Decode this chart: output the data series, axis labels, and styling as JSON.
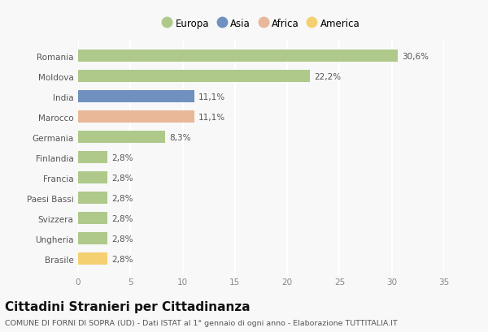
{
  "categories": [
    "Romania",
    "Moldova",
    "India",
    "Marocco",
    "Germania",
    "Finlandia",
    "Francia",
    "Paesi Bassi",
    "Svizzera",
    "Ungheria",
    "Brasile"
  ],
  "values": [
    30.6,
    22.2,
    11.1,
    11.1,
    8.3,
    2.8,
    2.8,
    2.8,
    2.8,
    2.8,
    2.8
  ],
  "labels": [
    "30,6%",
    "22,2%",
    "11,1%",
    "11,1%",
    "8,3%",
    "2,8%",
    "2,8%",
    "2,8%",
    "2,8%",
    "2,8%",
    "2,8%"
  ],
  "colors": [
    "#aec98a",
    "#aec98a",
    "#7090bf",
    "#e8b898",
    "#aec98a",
    "#aec98a",
    "#aec98a",
    "#aec98a",
    "#aec98a",
    "#aec98a",
    "#f5d070"
  ],
  "legend_labels": [
    "Europa",
    "Asia",
    "Africa",
    "America"
  ],
  "legend_colors": [
    "#aec98a",
    "#7090bf",
    "#e8b898",
    "#f5d070"
  ],
  "xlim": [
    0,
    35
  ],
  "xticks": [
    0,
    5,
    10,
    15,
    20,
    25,
    30,
    35
  ],
  "title": "Cittadini Stranieri per Cittadinanza",
  "subtitle": "COMUNE DI FORNI DI SOPRA (UD) - Dati ISTAT al 1° gennaio di ogni anno - Elaborazione TUTTITALIA.IT",
  "bg_color": "#f8f8f8",
  "plot_bg_color": "#f8f8f8",
  "bar_height": 0.6,
  "label_fontsize": 7.5,
  "tick_fontsize": 7.5,
  "legend_fontsize": 8.5,
  "title_fontsize": 11,
  "subtitle_fontsize": 6.8,
  "grid_color": "#ffffff",
  "label_color": "#555555",
  "tick_color": "#888888"
}
